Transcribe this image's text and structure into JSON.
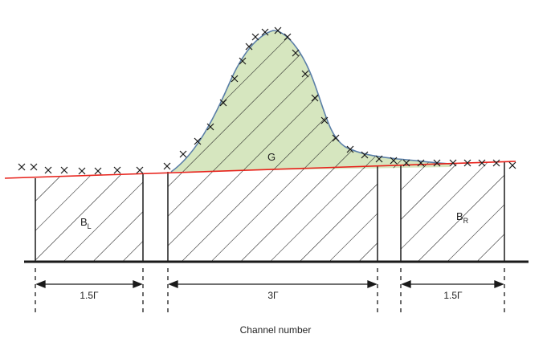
{
  "labels": {
    "gross_peak": "G",
    "left_background": "B",
    "left_background_sub": "L",
    "right_background": "B",
    "right_background_sub": "R",
    "left_width": "1.5Γ",
    "center_width": "3Γ",
    "right_width": "1.5Γ",
    "x_axis": "Channel number"
  },
  "colors": {
    "baseline": "#e8231c",
    "peak_fill": "#d6e6bf",
    "peak_outline": "#5b7fa8",
    "ink": "#1a1a1a"
  }
}
